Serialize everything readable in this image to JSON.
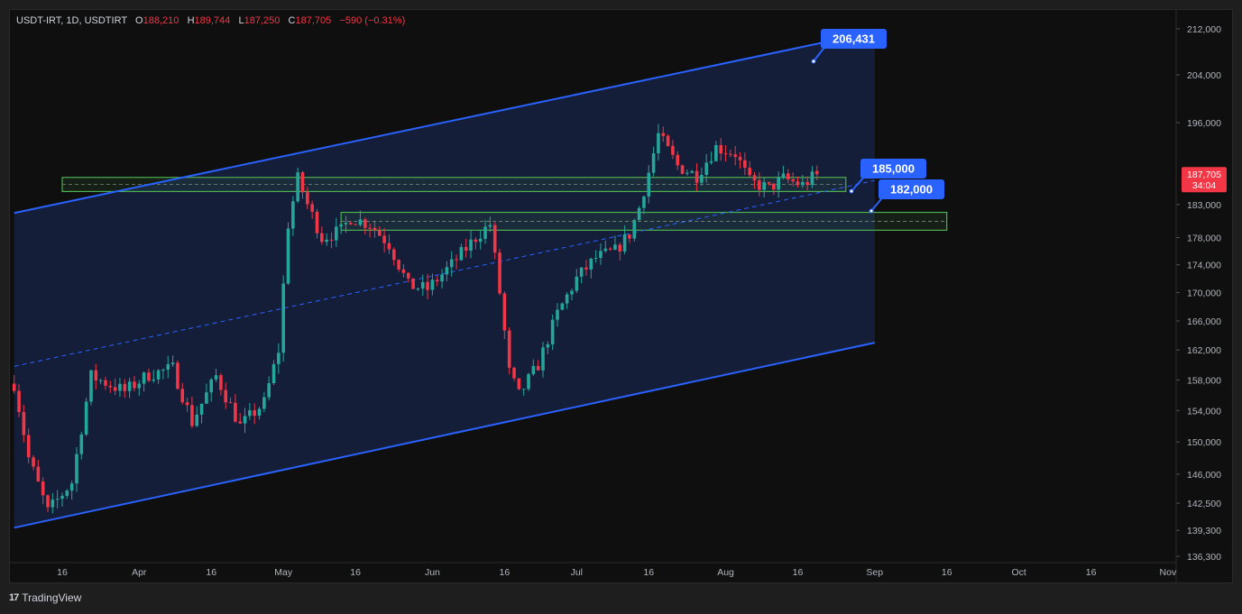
{
  "header": {
    "symbol": "USDT-IRT, 1D, USDTIRT",
    "open_label": "O",
    "open": "188,210",
    "high_label": "H",
    "high": "189,744",
    "low_label": "L",
    "low": "187,250",
    "close_label": "C",
    "close": "187,705",
    "change": "−590 (−0.31%)"
  },
  "footer": {
    "brand": "TradingView"
  },
  "colors": {
    "up": "#26a69a",
    "down": "#f23645",
    "channel": "#2962ff",
    "zone": "#4caf50",
    "background": "#0f0f0f"
  },
  "chart_data": {
    "type": "candlestick",
    "y_axis": {
      "scale": "log",
      "ticks": [
        "212,000",
        "204,000",
        "196,000",
        "183,000",
        "178,000",
        "174,000",
        "170,000",
        "166,000",
        "162,000",
        "158,000",
        "154,000",
        "150,000",
        "146,000",
        "142,500",
        "139,300",
        "136,300"
      ],
      "tick_values": [
        212000,
        204000,
        196000,
        183000,
        178000,
        174000,
        170000,
        166000,
        162000,
        158000,
        154000,
        150000,
        146000,
        142500,
        139300,
        136300
      ]
    },
    "x_axis": {
      "ticks": [
        "16",
        "Apr",
        "16",
        "May",
        "16",
        "Jun",
        "16",
        "Jul",
        "16",
        "Aug",
        "16",
        "Sep",
        "16",
        "Oct",
        "16",
        "Nov"
      ],
      "tick_dates": [
        "2025-03-16",
        "2025-04-01",
        "2025-04-16",
        "2025-05-01",
        "2025-05-16",
        "2025-06-01",
        "2025-06-16",
        "2025-07-01",
        "2025-07-16",
        "2025-08-01",
        "2025-08-16",
        "2025-09-01",
        "2025-09-16",
        "2025-10-01",
        "2025-10-16",
        "2025-11-01"
      ]
    },
    "price_label": {
      "value": "187,705",
      "countdown": "34:04"
    },
    "callouts": [
      "206,431",
      "185,000",
      "182,000"
    ],
    "channel": {
      "upper": [
        {
          "date": "2025-03-06",
          "value": 181700
        },
        {
          "date": "2025-09-01",
          "value": 211500
        }
      ],
      "lower": [
        {
          "date": "2025-03-06",
          "value": 139600
        },
        {
          "date": "2025-09-01",
          "value": 163000
        }
      ],
      "mid": [
        {
          "date": "2025-03-06",
          "value": 159800
        },
        {
          "date": "2025-09-01",
          "value": 186700
        }
      ]
    },
    "zones": [
      {
        "date_from": "2025-03-16",
        "date_to": "2025-08-26",
        "high": 187200,
        "low": 185000
      },
      {
        "date_from": "2025-05-13",
        "date_to": "2025-09-16",
        "high": 181800,
        "low": 179100
      }
    ],
    "waypoints": [
      [
        "2025-03-06",
        157500
      ],
      [
        "2025-03-09",
        148000
      ],
      [
        "2025-03-13",
        141500
      ],
      [
        "2025-03-18",
        145000
      ],
      [
        "2025-03-22",
        158500
      ],
      [
        "2025-03-29",
        156500
      ],
      [
        "2025-04-03",
        158700
      ],
      [
        "2025-04-08",
        159500
      ],
      [
        "2025-04-12",
        152500
      ],
      [
        "2025-04-17",
        158500
      ],
      [
        "2025-04-22",
        152000
      ],
      [
        "2025-04-27",
        155000
      ],
      [
        "2025-04-30",
        162000
      ],
      [
        "2025-05-02",
        180000
      ],
      [
        "2025-05-04",
        187000
      ],
      [
        "2025-05-06",
        183000
      ],
      [
        "2025-05-09",
        178000
      ],
      [
        "2025-05-13",
        179000
      ],
      [
        "2025-05-15",
        181000
      ],
      [
        "2025-05-19",
        180000
      ],
      [
        "2025-05-23",
        177000
      ],
      [
        "2025-05-27",
        171000
      ],
      [
        "2025-05-31",
        170500
      ],
      [
        "2025-06-05",
        174000
      ],
      [
        "2025-06-10",
        178000
      ],
      [
        "2025-06-13",
        180000
      ],
      [
        "2025-06-15",
        170000
      ],
      [
        "2025-06-17",
        159000
      ],
      [
        "2025-06-19",
        156000
      ],
      [
        "2025-06-23",
        160000
      ],
      [
        "2025-06-27",
        167000
      ],
      [
        "2025-07-01",
        172000
      ],
      [
        "2025-07-05",
        175000
      ],
      [
        "2025-07-09",
        176000
      ],
      [
        "2025-07-12",
        178500
      ],
      [
        "2025-07-14",
        182500
      ],
      [
        "2025-07-16",
        188000
      ],
      [
        "2025-07-18",
        194000
      ],
      [
        "2025-07-22",
        189000
      ],
      [
        "2025-07-26",
        187500
      ],
      [
        "2025-07-30",
        192000
      ],
      [
        "2025-08-03",
        191000
      ],
      [
        "2025-08-06",
        186500
      ],
      [
        "2025-08-10",
        185500
      ],
      [
        "2025-08-13",
        187000
      ],
      [
        "2025-08-17",
        186000
      ],
      [
        "2025-08-20",
        187705
      ]
    ]
  }
}
